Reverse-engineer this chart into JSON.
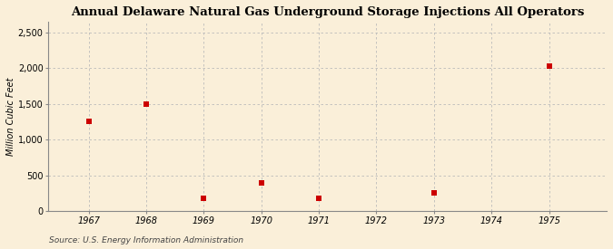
{
  "title": "Annual Delaware Natural Gas Underground Storage Injections All Operators",
  "ylabel": "Million Cubic Feet",
  "source": "Source: U.S. Energy Information Administration",
  "x_years": [
    1967,
    1968,
    1969,
    1970,
    1971,
    1973,
    1975
  ],
  "y_values": [
    1258,
    1497,
    176,
    390,
    176,
    253,
    2023
  ],
  "x_ticks": [
    1967,
    1968,
    1969,
    1970,
    1971,
    1972,
    1973,
    1974,
    1975
  ],
  "y_ticks": [
    0,
    500,
    1000,
    1500,
    2000,
    2500
  ],
  "ylim": [
    0,
    2650
  ],
  "xlim": [
    1966.3,
    1976.0
  ],
  "marker_color": "#cc0000",
  "marker": "s",
  "marker_size": 4,
  "background_color": "#faefd9",
  "grid_color": "#bbbbbb",
  "title_fontsize": 9.5,
  "label_fontsize": 7,
  "tick_fontsize": 7,
  "source_fontsize": 6.5
}
